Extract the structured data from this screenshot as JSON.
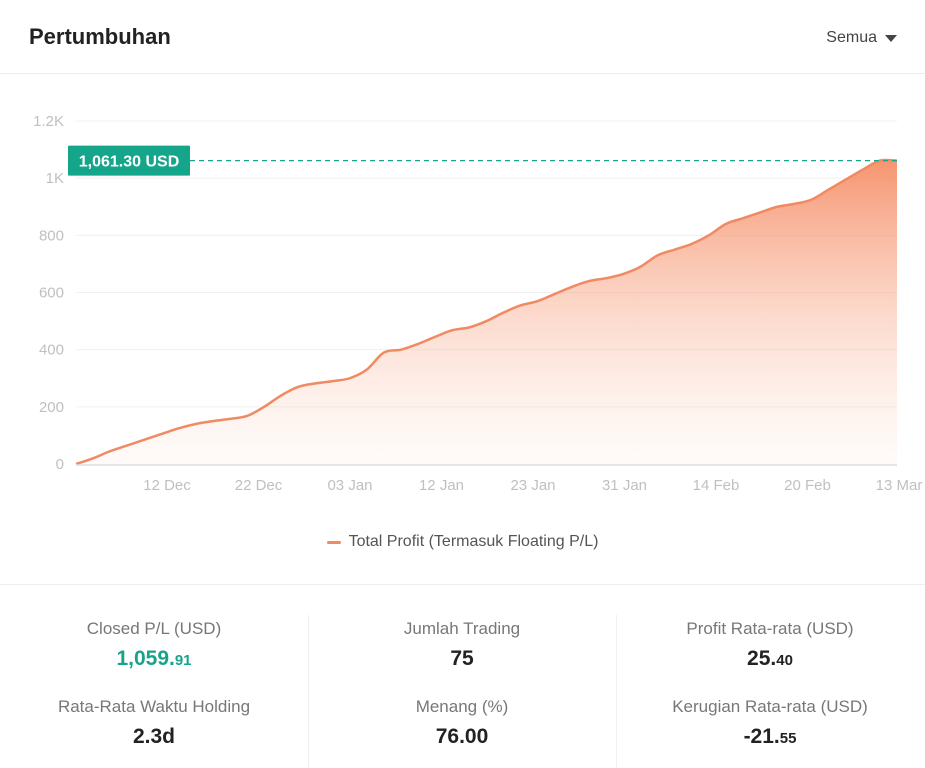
{
  "header": {
    "title": "Pertumbuhan",
    "filter_label": "Semua"
  },
  "colors": {
    "line": "#f08a63",
    "accent_green": "#15a58a",
    "grid": "#f0f0f0",
    "axis_text": "#c0c0c0"
  },
  "chart_data": {
    "type": "area",
    "x_ticks": [
      "12 Dec",
      "22 Dec",
      "03 Jan",
      "12 Jan",
      "23 Jan",
      "31 Jan",
      "14 Feb",
      "20 Feb",
      "13 Mar"
    ],
    "y_ticks": [
      "0",
      "200",
      "400",
      "600",
      "800",
      "1K",
      "1.2K"
    ],
    "ylim": [
      0,
      1200
    ],
    "y": [
      0,
      20,
      45,
      65,
      85,
      105,
      125,
      140,
      150,
      158,
      168,
      200,
      240,
      270,
      282,
      290,
      300,
      330,
      390,
      400,
      420,
      445,
      468,
      478,
      500,
      530,
      555,
      570,
      595,
      620,
      640,
      650,
      665,
      690,
      730,
      750,
      770,
      800,
      840,
      860,
      880,
      900,
      910,
      925,
      960,
      995,
      1030,
      1061.3,
      1061.3
    ],
    "series": [
      {
        "name": "Total Profit (Termasuk Floating P/L)"
      }
    ],
    "annotation": "1,061.30 USD",
    "grid": true,
    "legend_position": "bottom"
  },
  "stats": {
    "closed_pl": {
      "label": "Closed P/L (USD)",
      "int": "1,059.",
      "dec": "91"
    },
    "trades": {
      "label": "Jumlah Trading",
      "int": "75",
      "dec": ""
    },
    "avg_profit": {
      "label": "Profit Rata-rata (USD)",
      "int": "25.",
      "dec": "40"
    },
    "holding": {
      "label": "Rata-Rata Waktu Holding",
      "int": "2.3d",
      "dec": ""
    },
    "win": {
      "label": "Menang (%)",
      "int": "76.00",
      "dec": ""
    },
    "avg_loss": {
      "label": "Kerugian Rata-rata (USD)",
      "int": "-21.",
      "dec": "55"
    }
  }
}
